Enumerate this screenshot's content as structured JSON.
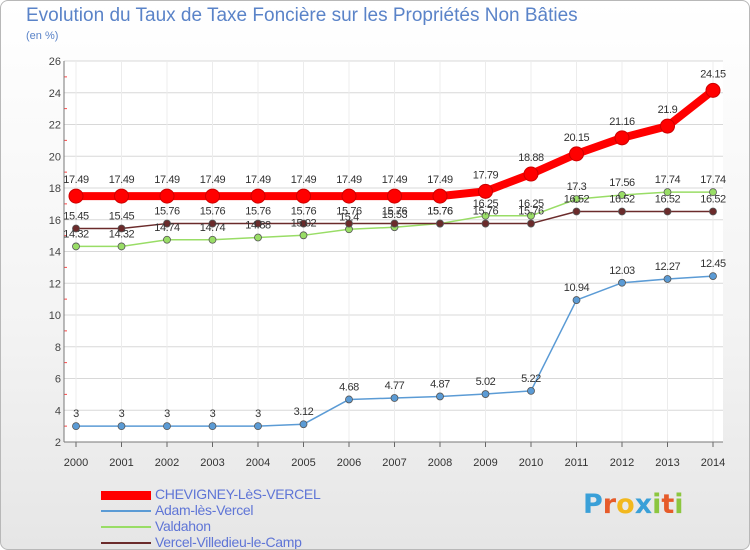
{
  "title": "Evolution du Taux de Taxe Foncière sur les Propriétés Non Bâties",
  "unit_label": "(en %)",
  "logo": {
    "letters": [
      "P",
      "r",
      "o",
      "x",
      "i",
      "t",
      "i"
    ],
    "colors": [
      "#3aa0d8",
      "#e65b2a",
      "#f2b81e",
      "#3aa0d8",
      "#8cc63f",
      "#e65b2a",
      "#8cc63f"
    ]
  },
  "chart_data": {
    "type": "line",
    "title": "Evolution du Taux de Taxe Foncière sur les Propriétés Non Bâties",
    "ylabel": "(en %)",
    "x": [
      "2000",
      "2001",
      "2002",
      "2003",
      "2004",
      "2005",
      "2006",
      "2007",
      "2008",
      "2009",
      "2010",
      "2011",
      "2012",
      "2013",
      "2014"
    ],
    "ylim": [
      2,
      26
    ],
    "yticks": [
      2,
      4,
      6,
      8,
      10,
      12,
      14,
      16,
      18,
      20,
      22,
      24,
      26
    ],
    "grid": "horizontal",
    "legend_position": "bottom-left",
    "series": [
      {
        "name": "CHEVIGNEY-LèS-VERCEL",
        "color": "#ff0000",
        "values": [
          17.49,
          17.49,
          17.49,
          17.49,
          17.49,
          17.49,
          17.49,
          17.49,
          17.49,
          17.79,
          18.88,
          20.15,
          21.16,
          21.9,
          24.15
        ],
        "labels": [
          "17.49",
          "17.49",
          "17.49",
          "17.49",
          "17.49",
          "17.49",
          "17.49",
          "17.49",
          "17.49",
          "17.79",
          "18.88",
          "20.15",
          "21.16",
          "21.9",
          "24.15"
        ]
      },
      {
        "name": "Adam-lès-Vercel",
        "color": "#5b9bd5",
        "values": [
          3,
          3,
          3,
          3,
          3,
          3.12,
          4.68,
          4.77,
          4.87,
          5.02,
          5.22,
          10.94,
          12.03,
          12.27,
          12.45
        ],
        "labels": [
          "3",
          "3",
          "3",
          "3",
          "3",
          "3.12",
          "4.68",
          "4.77",
          "4.87",
          "5.02",
          "5.22",
          "10.94",
          "12.03",
          "12.27",
          "12.45"
        ]
      },
      {
        "name": "Valdahon",
        "color": "#99dd66",
        "values": [
          14.32,
          14.32,
          14.74,
          14.74,
          14.88,
          15.02,
          15.4,
          15.53,
          15.76,
          16.25,
          16.25,
          17.3,
          17.56,
          17.74,
          17.74
        ],
        "labels": [
          "14.32",
          "14.32",
          "14.74",
          "14.74",
          "14.88",
          "15.02",
          "15.4",
          "15.53",
          "15.76",
          "16.25",
          "16.25",
          "17.3",
          "17.56",
          "17.74",
          "17.74"
        ]
      },
      {
        "name": "Vercel-Villedieu-le-Camp",
        "color": "#6b2b2b",
        "values": [
          15.45,
          15.45,
          15.76,
          15.76,
          15.76,
          15.76,
          15.76,
          15.76,
          15.76,
          15.76,
          15.76,
          16.52,
          16.52,
          16.52,
          16.52
        ],
        "labels": [
          "15.45",
          "15.45",
          "15.76",
          "15.76",
          "15.76",
          "15.76",
          "15.76",
          "15.76",
          "15.76",
          "15.76",
          "15.76",
          "16.52",
          "16.52",
          "16.52",
          "16.52"
        ]
      }
    ]
  }
}
